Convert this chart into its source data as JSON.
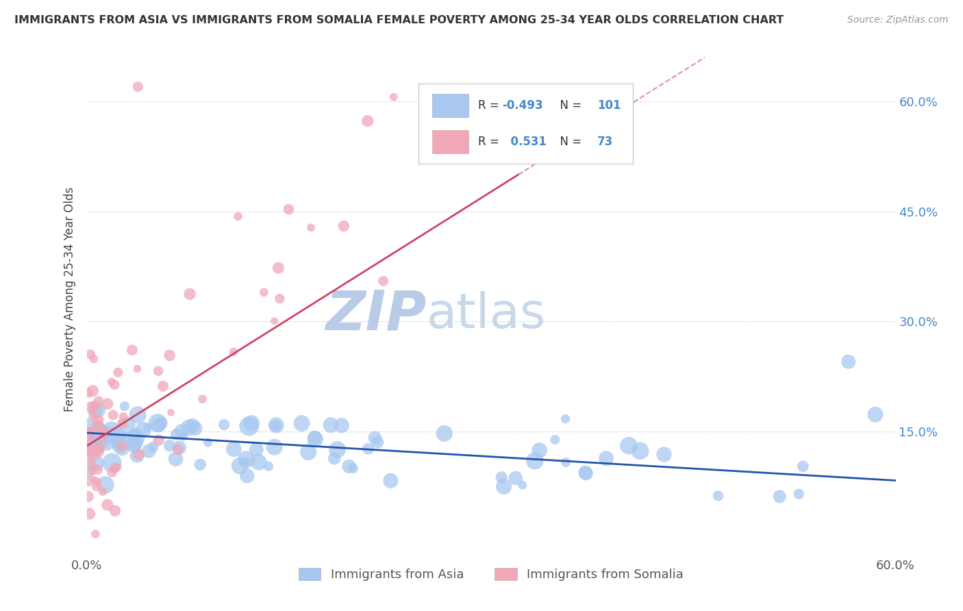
{
  "title": "IMMIGRANTS FROM ASIA VS IMMIGRANTS FROM SOMALIA FEMALE POVERTY AMONG 25-34 YEAR OLDS CORRELATION CHART",
  "source": "Source: ZipAtlas.com",
  "ylabel": "Female Poverty Among 25-34 Year Olds",
  "xlim": [
    0.0,
    0.6
  ],
  "ylim": [
    -0.02,
    0.68
  ],
  "blue_R": -0.493,
  "blue_N": 101,
  "pink_R": 0.531,
  "pink_N": 73,
  "blue_color": "#a8c8f0",
  "pink_color": "#f0a8b8",
  "blue_line_color": "#2255aa",
  "pink_line_color": "#cc4466",
  "watermark_zip": "ZIP",
  "watermark_atlas": "atlas",
  "watermark_zip_color": "#b8cce8",
  "watermark_atlas_color": "#c8d8e8",
  "background_color": "#ffffff",
  "grid_color": "#dddddd",
  "right_tick_color": "#4488cc",
  "legend_text_color": "#444444",
  "legend_r_color": "#4488cc",
  "bottom_legend_color": "#555555"
}
